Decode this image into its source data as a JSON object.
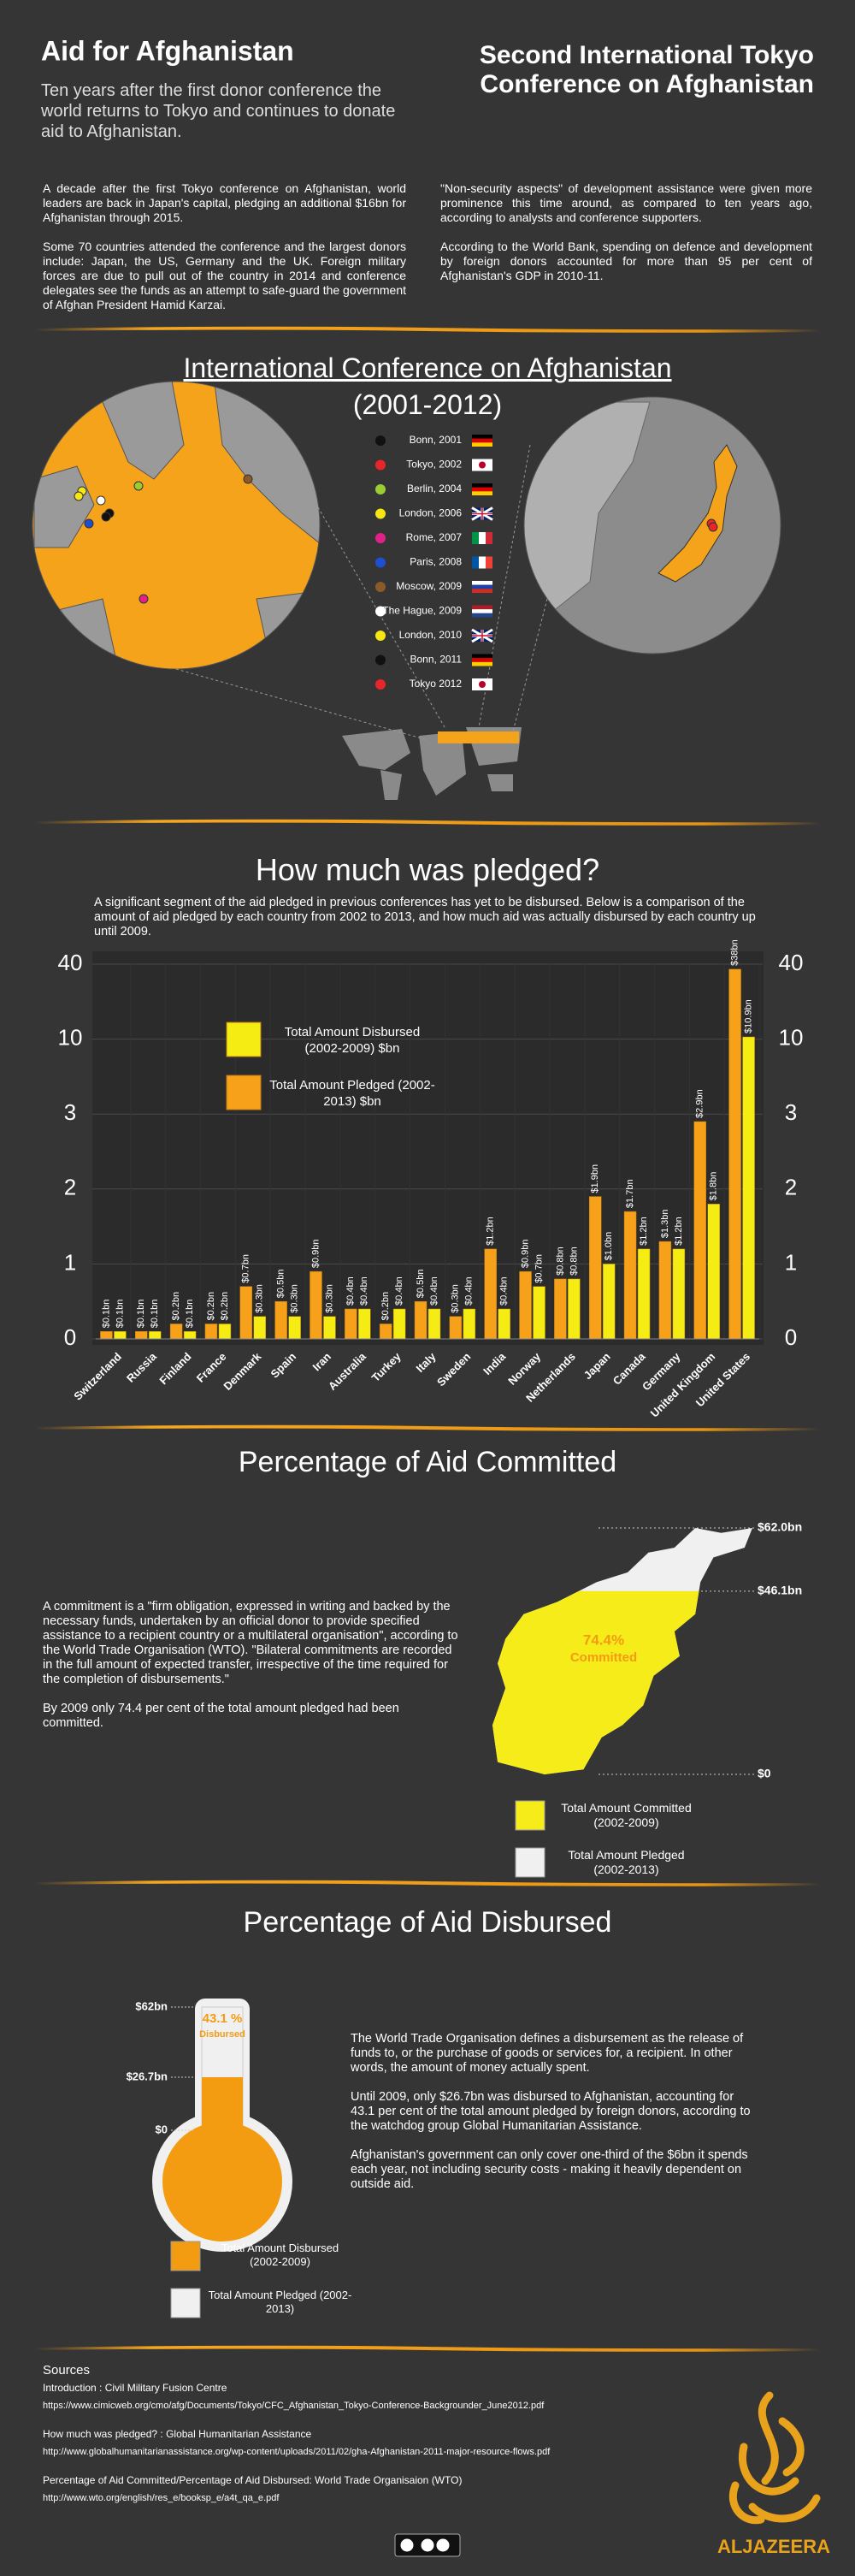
{
  "header": {
    "title": "Aid for Afghanistan",
    "subtitle": "Ten years after the first donor conference the world returns to Tokyo and continues to donate aid to Afghanistan.",
    "title_right": "Second International Tokyo Conference on Afghanistan"
  },
  "intro": {
    "left": [
      "A decade after the first Tokyo conference on Afghanistan, world leaders are back in Japan's capital, pledging an additional $16bn for Afghanistan through 2015.",
      "Some 70 countries attended the conference and the largest donors include: Japan, the US, Germany and the UK. Foreign military forces are due to pull out of the country in 2014 and conference delegates see the funds as an attempt to safe-guard the government of Afghan President Hamid Karzai."
    ],
    "right": [
      "\"Non-security aspects\" of development assistance were given more prominence this time around, as compared to ten years ago, according to analysts and conference supporters.",
      "According to the World Bank, spending on defence and development by foreign donors accounted for more than 95 per cent of Afghanistan's GDP in 2010-11."
    ]
  },
  "conferences": {
    "title": "International Conference on Afghanistan",
    "subtitle": "(2001-2012)",
    "items": [
      {
        "label": "Bonn, 2001",
        "color": "#111111"
      },
      {
        "label": "Tokyo, 2002",
        "color": "#e8262a"
      },
      {
        "label": "Berlin, 2004",
        "color": "#9acd32"
      },
      {
        "label": "London, 2006",
        "color": "#f5e614"
      },
      {
        "label": "Rome, 2007",
        "color": "#e0218a"
      },
      {
        "label": "Paris, 2008",
        "color": "#1f4fd1"
      },
      {
        "label": "Moscow, 2009",
        "color": "#8b5a2b"
      },
      {
        "label": "The Hague, 2009",
        "color": "#ffffff"
      },
      {
        "label": "London, 2010",
        "color": "#f5e614"
      },
      {
        "label": "Bonn, 2011",
        "color": "#111111"
      },
      {
        "label": "Tokyo 2012",
        "color": "#e8262a"
      }
    ]
  },
  "chart_data": [
    {
      "type": "bar",
      "title": "How much was pledged?",
      "description": "A significant segment of the aid pledged in previous conferences has yet to be disbursed. Below is a comparison of the amount of aid pledged by each country from 2002 to 2013, and how much aid was actually disbursed by each country up until 2009.",
      "categories": [
        "Switzerland",
        "Russia",
        "Finland",
        "France",
        "Denmark",
        "Spain",
        "Iran",
        "Australia",
        "Turkey",
        "Italy",
        "Sweden",
        "India",
        "Norway",
        "Netherlands",
        "Japan",
        "Canada",
        "Germany",
        "United Kingdom",
        "United States"
      ],
      "series": [
        {
          "name": "Total Amount Disbursed (2002-2009) $bn",
          "color": "#f5ec14",
          "values": [
            0.1,
            0.1,
            0.1,
            0.2,
            0.3,
            0.3,
            0.3,
            0.4,
            0.4,
            0.4,
            0.4,
            0.4,
            0.7,
            0.8,
            1.0,
            1.2,
            1.2,
            1.8,
            10.9
          ],
          "value_labels": [
            "$0.1bn",
            "$0.1bn",
            "$0.1bn",
            "$0.2bn",
            "$0.3bn",
            "$0.3bn",
            "$0.3bn",
            "$0.4bn",
            "$0.4bn",
            "$0.4bn",
            "$0.4bn",
            "$0.4bn",
            "$0.7bn",
            "$0.8bn",
            "$1.0bn",
            "$1.2bn",
            "$1.2bn",
            "$1.8bn",
            "$10.9bn"
          ]
        },
        {
          "name": "Total Amount Pledged (2002-2013) $bn",
          "color": "#f7a11a",
          "values": [
            0.1,
            0.1,
            0.2,
            0.2,
            0.7,
            0.5,
            0.9,
            0.4,
            0.2,
            0.5,
            0.3,
            1.2,
            0.9,
            0.8,
            1.9,
            1.7,
            1.3,
            2.9,
            38
          ],
          "value_labels": [
            "$0.1bn",
            "$0.1bn",
            "$0.2bn",
            "$0.2bn",
            "$0.7bn",
            "$0.5bn",
            "$0.9bn",
            "$0.4bn",
            "$0.2bn",
            "$0.5bn",
            "$0.3bn",
            "$1.2bn",
            "$0.9bn",
            "$0.8bn",
            "$1.9bn",
            "$1.7bn",
            "$1.3bn",
            "$2.9bn",
            "$38bn"
          ]
        }
      ],
      "ylim": [
        0,
        40
      ],
      "yticks": [
        0,
        1,
        2,
        3,
        10,
        40
      ],
      "axis_scale": "piecewise",
      "grid": true
    },
    {
      "type": "shape_fill",
      "title": "Percentage of Aid Committed",
      "annotation": "74.4%",
      "annotation_note": "Committed",
      "series": [
        {
          "name": "Total Amount Committed (2002-2009)",
          "color": "#f5ec1a",
          "values": [
            46.1
          ]
        },
        {
          "name": "Total Amount Pledged (2002-2013)",
          "color": "#f0f0f0",
          "values": [
            62.0
          ]
        }
      ],
      "ylim": [
        0,
        62.0
      ],
      "yticks": [
        {
          "value": 0,
          "label": "$0"
        },
        {
          "value": 46.1,
          "label": "$46.1bn"
        },
        {
          "value": 62.0,
          "label": "$62.0bn"
        }
      ]
    },
    {
      "type": "thermometer",
      "title": "Percentage of Aid Disbursed",
      "annotation": "43.1 %",
      "annotation_note": "Disbursed",
      "series": [
        {
          "name": "Total Amount Disbursed (2002-2009)",
          "color": "#f39c12",
          "values": [
            26.7
          ]
        },
        {
          "name": "Total Amount Pledged (2002-2013)",
          "color": "#f0f0f0",
          "values": [
            62
          ]
        }
      ],
      "ylim": [
        0,
        62
      ],
      "yticks": [
        {
          "value": 0,
          "label": "$0"
        },
        {
          "value": 26.7,
          "label": "$26.7bn"
        },
        {
          "value": 62,
          "label": "$62bn"
        }
      ]
    }
  ],
  "committed_text": [
    "A commitment is a \"firm obligation, expressed in writing and backed by the necessary funds, undertaken by an official donor to provide specified assistance to a recipient country or a multilateral organisation\", according to the World Trade Organisation (WTO). \"Bilateral commitments are recorded in the full amount of expected transfer, irrespective of the time required for the completion of disbursements.\"",
    "By 2009 only 74.4 per cent of the total amount pledged had been committed."
  ],
  "disbursed_text": [
    "The World Trade Organisation defines a disbursement as the release of funds to, or the purchase of goods or services for, a recipient. In other words, the amount of money actually spent.",
    "Until 2009, only $26.7bn was disbursed to Afghanistan, accounting for 43.1 per cent of the total amount pledged by foreign donors, according to the watchdog group Global Humanitarian Assistance.",
    "Afghanistan's government can only cover one-third of the $6bn it spends each year, not including security costs - making it heavily dependent on outside aid."
  ],
  "sources": {
    "title": "Sources",
    "lines": [
      "Introduction : Civil Military Fusion Centre",
      "https://www.cimicweb.org/cmo/afg/Documents/Tokyo/CFC_Afghanistan_Tokyo-Conference-Backgrounder_June2012.pdf",
      "How much was pledged? : Global Humanitarian Assistance",
      "http://www.globalhumanitarianassistance.org/wp-content/uploads/2011/02/gha-Afghanistan-2011-major-resource-flows.pdf",
      "Percentage of Aid Committed/Percentage of Aid Disbursed: World Trade Organisaion (WTO)",
      "http://www.wto.org/english/res_e/booksp_e/a4t_qa_e.pdf"
    ]
  },
  "logo": "ALJAZEERA"
}
